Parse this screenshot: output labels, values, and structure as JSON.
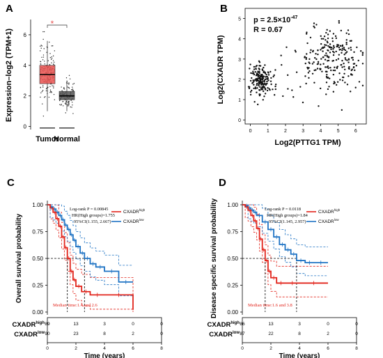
{
  "panels": {
    "A": {
      "letter": "A",
      "ylabel": "Expression–log2 (TPM+1)",
      "yticks": [
        "0",
        "2",
        "4",
        "6"
      ],
      "significance": "*"
    },
    "B": {
      "letter": "B",
      "stat_p_prefix": "p = 2.5×10",
      "stat_p_exp": "-47",
      "stat_r": "R = 0.67",
      "xticks": [
        "0",
        "1",
        "2",
        "3",
        "4",
        "5",
        "6"
      ],
      "yticks": [
        "0",
        "1",
        "2",
        "3",
        "4",
        "5"
      ]
    },
    "C": {
      "letter": "C",
      "ylabel": "Overall survival probability",
      "xlabel": "Time (years)",
      "yticks": [
        "0.00",
        "0.25",
        "0.50",
        "0.75",
        "1.00"
      ],
      "xticks": [
        "0",
        "2",
        "4",
        "6",
        "8"
      ],
      "legend_high": "CXADR",
      "legend_high_sup": "high",
      "legend_low": "CXADR",
      "legend_low_sup": "low",
      "annot": [
        "Log-rank P = 0.00845",
        "HR(High groups)=1.755",
        "95%CI(1.155, 2.667)"
      ],
      "median": "Median time:1.4 and 2.6",
      "risk_labels": [
        {
          "name": "CXADR",
          "sup": "high"
        },
        {
          "name": "CXADR",
          "sup": "low"
        }
      ],
      "risk_high": [
        "89",
        "13",
        "3",
        "0",
        "0"
      ],
      "risk_low": [
        "90",
        "23",
        "8",
        "2",
        "0"
      ]
    },
    "D": {
      "letter": "D",
      "ylabel": "Disease specific survival probability",
      "xlabel": "Time (years)",
      "yticks": [
        "0.00",
        "0.25",
        "0.50",
        "0.75",
        "1.00"
      ],
      "xticks": [
        "0",
        "2",
        "4",
        "6",
        "8"
      ],
      "legend_high": "CXADR",
      "legend_high_sup": "high",
      "legend_low": "CXADR",
      "legend_low_sup": "low",
      "annot": [
        "Log-rank P = 0.0118",
        "HR(High groups)=1.84",
        "95%CI(1.145, 2.957)"
      ],
      "median": "Median time:1.6 and 3.8",
      "risk_labels": [
        {
          "name": "CXADR",
          "sup": "high"
        },
        {
          "name": "CXADR",
          "sup": "low"
        }
      ],
      "risk_high": [
        "86",
        "13",
        "3",
        "0",
        "0"
      ],
      "risk_low": [
        "87",
        "22",
        "8",
        "2",
        "0"
      ]
    }
  },
  "colors": {
    "tumor": "#e8514f",
    "normal": "#555555",
    "high": "#e2231a",
    "low": "#1f73c4",
    "sig": "#e8514f"
  },
  "chart_data": [
    {
      "type": "box",
      "panel": "A",
      "categories": [
        "Tumor",
        "Normal"
      ],
      "ylabel": "Expression–log2 (TPM+1)",
      "ylim": [
        -0.2,
        7
      ],
      "boxes": [
        {
          "name": "Tumor",
          "q1": 2.8,
          "median": 3.4,
          "q3": 4.0,
          "whisker_low": 1.0,
          "whisker_high": 5.6
        },
        {
          "name": "Normal",
          "q1": 1.75,
          "median": 2.0,
          "q3": 2.3,
          "whisker_low": 1.0,
          "whisker_high": 3.0
        }
      ]
    },
    {
      "type": "scatter",
      "panel": "B",
      "xlabel": "Log2(PTTG1 TPM)",
      "ylabel": "Log2(CXADR TPM)",
      "xlim": [
        -0.3,
        6.6
      ],
      "ylim": [
        -0.2,
        5.5
      ],
      "clusters": [
        {
          "center": [
            0.6,
            2.0
          ],
          "sd": [
            0.3,
            0.4
          ],
          "n": 180
        },
        {
          "center": [
            4.6,
            3.0
          ],
          "sd": [
            0.85,
            0.75
          ],
          "n": 230
        }
      ]
    },
    {
      "type": "line",
      "panel": "C",
      "title": "",
      "xlabel": "Time (years)",
      "ylabel": "Overall survival probability",
      "xlim": [
        0,
        8
      ],
      "ylim": [
        0,
        1
      ],
      "series": [
        {
          "name": "CXADR high",
          "x": [
            0,
            0.2,
            0.4,
            0.6,
            0.8,
            1.0,
            1.2,
            1.4,
            1.6,
            1.8,
            2.0,
            2.4,
            3.0,
            4.0,
            6.0,
            6.0
          ],
          "y": [
            1.0,
            0.97,
            0.93,
            0.87,
            0.8,
            0.7,
            0.6,
            0.5,
            0.38,
            0.3,
            0.24,
            0.19,
            0.16,
            0.16,
            0.16,
            0.02
          ]
        },
        {
          "name": "CXADR low",
          "x": [
            0,
            0.2,
            0.4,
            0.6,
            0.8,
            1.0,
            1.2,
            1.4,
            1.6,
            1.8,
            2.0,
            2.3,
            2.6,
            3.0,
            3.4,
            4.0,
            5.0,
            6.0
          ],
          "y": [
            1.0,
            0.98,
            0.96,
            0.93,
            0.9,
            0.86,
            0.81,
            0.77,
            0.72,
            0.67,
            0.61,
            0.55,
            0.5,
            0.45,
            0.42,
            0.38,
            0.28,
            0.28
          ]
        }
      ]
    },
    {
      "type": "line",
      "panel": "D",
      "title": "",
      "xlabel": "Time (years)",
      "ylabel": "Disease specific survival probability",
      "xlim": [
        0,
        8
      ],
      "ylim": [
        0,
        1
      ],
      "series": [
        {
          "name": "CXADR high",
          "x": [
            0,
            0.2,
            0.4,
            0.6,
            0.8,
            1.0,
            1.2,
            1.4,
            1.6,
            1.8,
            2.0,
            2.4,
            3.0,
            4.0,
            6.0
          ],
          "y": [
            1.0,
            0.98,
            0.95,
            0.9,
            0.85,
            0.78,
            0.68,
            0.58,
            0.48,
            0.38,
            0.32,
            0.27,
            0.27,
            0.27,
            0.27
          ]
        },
        {
          "name": "CXADR low",
          "x": [
            0,
            0.2,
            0.4,
            0.6,
            0.8,
            1.0,
            1.4,
            1.8,
            2.2,
            2.6,
            3.0,
            3.4,
            3.8,
            4.4,
            5.0,
            6.0
          ],
          "y": [
            1.0,
            0.99,
            0.97,
            0.95,
            0.93,
            0.9,
            0.84,
            0.77,
            0.7,
            0.63,
            0.58,
            0.54,
            0.48,
            0.46,
            0.46,
            0.46
          ]
        }
      ]
    }
  ]
}
